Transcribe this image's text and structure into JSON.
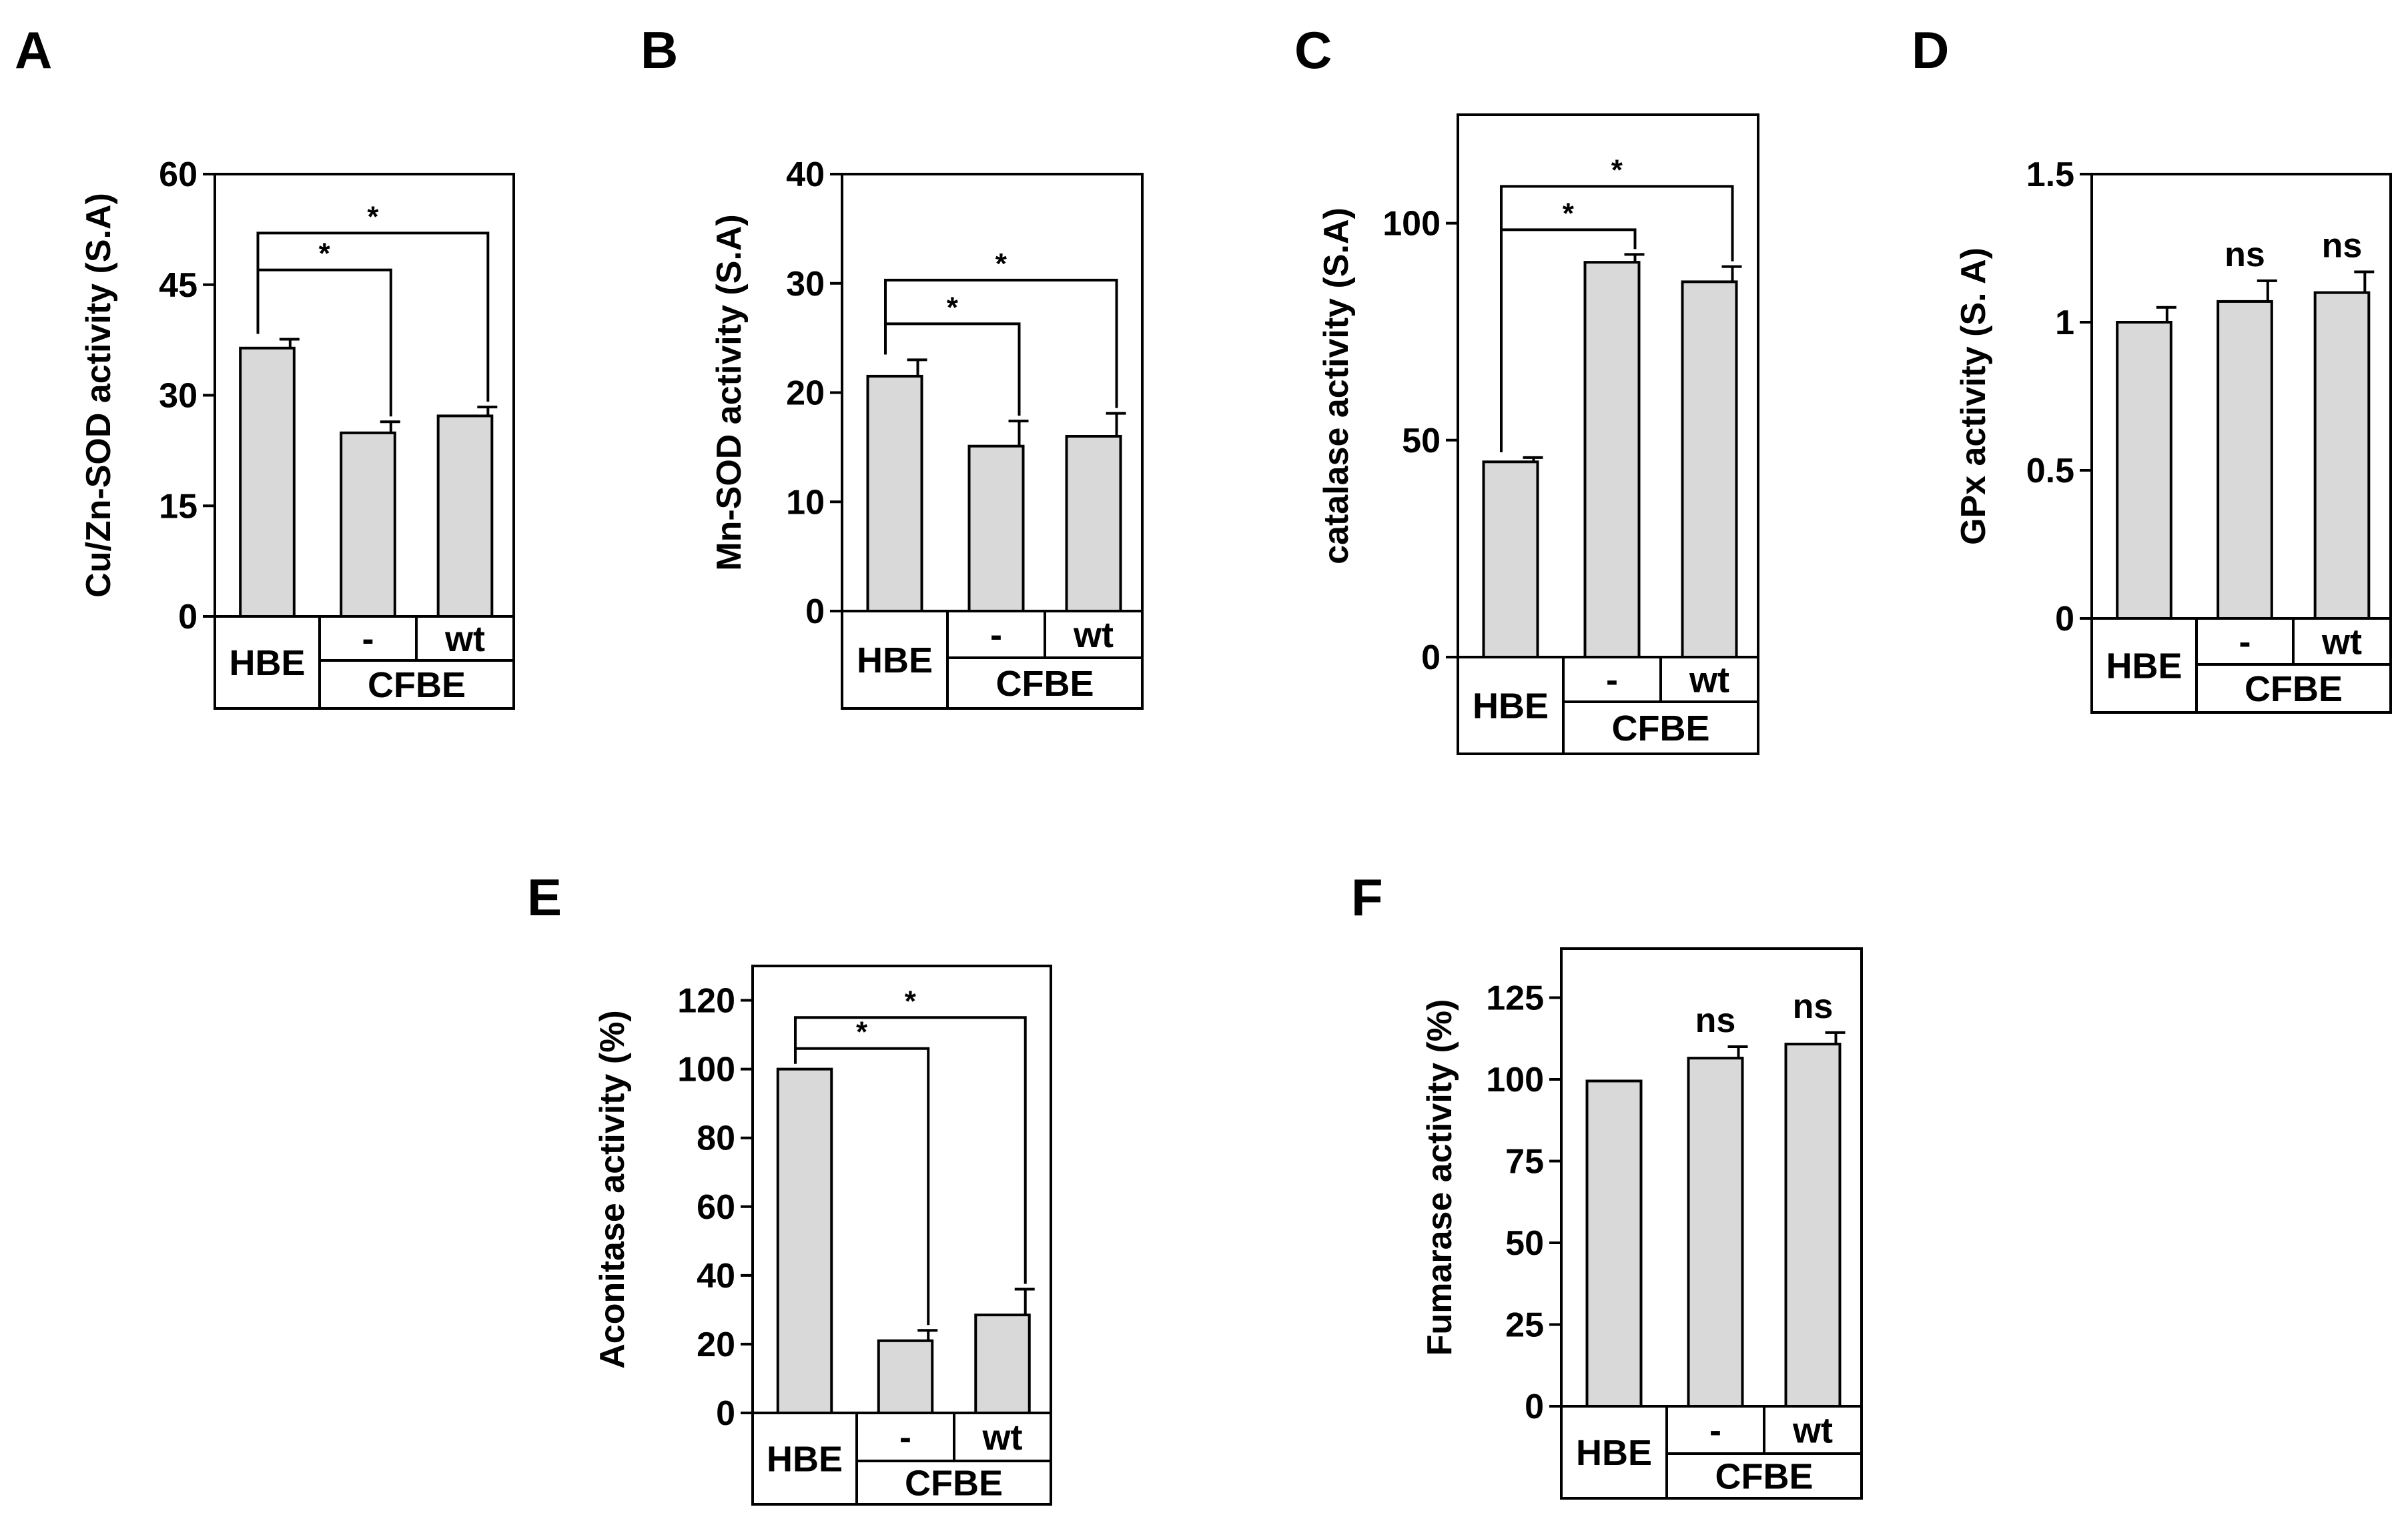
{
  "figure": {
    "group_label": "CFBE",
    "category_labels": [
      "HBE",
      "-",
      "wt"
    ],
    "colors": {
      "bar_fill": "#d9d9d9",
      "stroke": "#000000"
    }
  },
  "chart_data": [
    {
      "panel": "A",
      "type": "bar",
      "ylabel": "Cu/Zn-SOD activity (S.A)",
      "ylim": [
        0,
        60
      ],
      "yticks": [
        0,
        15,
        30,
        45,
        60
      ],
      "categories": [
        "HBE",
        "-",
        "wt"
      ],
      "group": "CFBE",
      "values": [
        36.4,
        24.9,
        27.2
      ],
      "errors": [
        1.2,
        1.5,
        1.2
      ],
      "annotations": [
        {
          "text": "*",
          "from": 0,
          "to": 1,
          "level": 47
        },
        {
          "text": "*",
          "from": 0,
          "to": 2,
          "level": 52
        }
      ]
    },
    {
      "panel": "B",
      "type": "bar",
      "ylabel": "Mn-SOD activity (S.A)",
      "ylim": [
        0,
        40
      ],
      "yticks": [
        0,
        10,
        20,
        30,
        40
      ],
      "categories": [
        "HBE",
        "-",
        "wt"
      ],
      "group": "CFBE",
      "values": [
        21.5,
        15.1,
        16.0
      ],
      "errors": [
        1.5,
        2.3,
        2.1
      ],
      "annotations": [
        {
          "text": "*",
          "from": 0,
          "to": 1,
          "level": 26.3
        },
        {
          "text": "*",
          "from": 0,
          "to": 2,
          "level": 30.3
        }
      ]
    },
    {
      "panel": "C",
      "type": "bar",
      "ylabel": "catalase activity (S.A)",
      "ylim": [
        0,
        125
      ],
      "yticks": [
        0,
        50,
        100
      ],
      "categories": [
        "HBE",
        "-",
        "wt"
      ],
      "group": "CFBE",
      "values": [
        45,
        91,
        86.5
      ],
      "errors": [
        1,
        1.8,
        3.5
      ],
      "annotations": [
        {
          "text": "*",
          "from": 0,
          "to": 1,
          "level": 98.5
        },
        {
          "text": "*",
          "from": 0,
          "to": 2,
          "level": 108.5
        }
      ]
    },
    {
      "panel": "D",
      "type": "bar",
      "ylabel": "GPx activity (S. A)",
      "ylim": [
        0,
        1.5
      ],
      "yticks": [
        0,
        0.5,
        1,
        1.5
      ],
      "categories": [
        "HBE",
        "-",
        "wt"
      ],
      "group": "CFBE",
      "values": [
        1.0,
        1.07,
        1.1
      ],
      "errors": [
        0.05,
        0.07,
        0.07
      ],
      "labels": [
        "",
        "ns",
        "ns"
      ]
    },
    {
      "panel": "E",
      "type": "bar",
      "ylabel": "Aconitase activity (%)",
      "ylim": [
        0,
        130
      ],
      "yticks": [
        0,
        20,
        40,
        60,
        80,
        100,
        120
      ],
      "categories": [
        "HBE",
        "-",
        "wt"
      ],
      "group": "CFBE",
      "values": [
        100,
        21,
        28.5
      ],
      "errors": [
        0,
        3,
        7.5
      ],
      "annotations": [
        {
          "text": "*",
          "from": 0,
          "to": 1,
          "level": 106
        },
        {
          "text": "*",
          "from": 0,
          "to": 2,
          "level": 115
        }
      ]
    },
    {
      "panel": "F",
      "type": "bar",
      "ylabel": "Fumarase activity (%)",
      "ylim": [
        0,
        140
      ],
      "yticks": [
        0,
        25,
        50,
        75,
        100,
        125
      ],
      "categories": [
        "HBE",
        "-",
        "wt"
      ],
      "group": "CFBE",
      "values": [
        99.5,
        106.5,
        110.8
      ],
      "errors": [
        0,
        3.5,
        3.5
      ],
      "labels": [
        "",
        "ns",
        "ns"
      ]
    }
  ]
}
